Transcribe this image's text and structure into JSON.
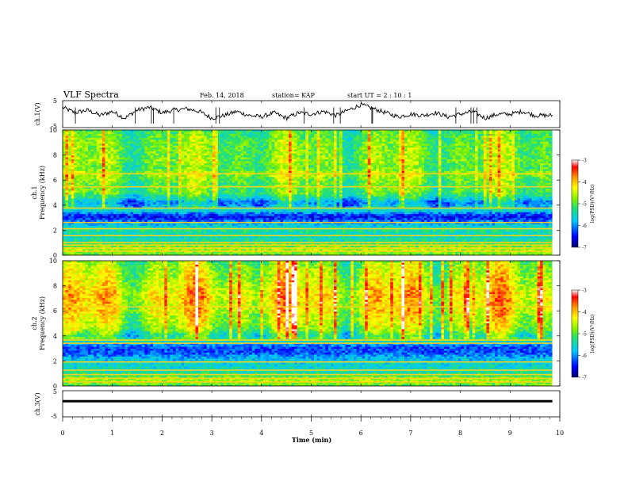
{
  "header": {
    "title": "VLF Spectra",
    "date": "Feb. 14, 2018",
    "station": "station= KAP",
    "start": "start  UT =   2 : 10 : 1"
  },
  "colors": {
    "colormap": [
      "#00006e",
      "#0000ff",
      "#00c8ff",
      "#22e07a",
      "#7ff000",
      "#ffff00",
      "#ff9b00",
      "#ff0000",
      "#ffffff"
    ],
    "trace": "#000000"
  },
  "chart_data": [
    {
      "type": "line",
      "name": "ch1-waveform",
      "ylabel": "ch.1(V)",
      "yticks": [
        "5",
        "-5"
      ],
      "ylim": [
        -5,
        5
      ],
      "xlim": [
        0,
        9.85
      ],
      "x": [
        0,
        0.25,
        0.5,
        0.75,
        1.0,
        1.25,
        1.5,
        1.75,
        2.0,
        2.25,
        2.5,
        2.75,
        3.0,
        3.25,
        3.5,
        3.75,
        4.0,
        4.25,
        4.5,
        4.75,
        5.0,
        5.25,
        5.5,
        5.75,
        6.0,
        6.25,
        6.5,
        6.75,
        7.0,
        7.25,
        7.5,
        7.75,
        8.0,
        8.25,
        8.5,
        8.75,
        9.0,
        9.25,
        9.5,
        9.85
      ],
      "values": [
        2.5,
        0.5,
        1.5,
        -0.5,
        1.0,
        -1.5,
        1.5,
        2.5,
        0.5,
        1.5,
        2.0,
        1.0,
        -1.5,
        -0.5,
        1.0,
        -0.5,
        -1.0,
        0.5,
        -1.5,
        0.5,
        0.0,
        1.0,
        -0.5,
        1.5,
        3.5,
        2.0,
        0.5,
        -1.0,
        0.0,
        -0.5,
        0.5,
        -1.0,
        0.0,
        1.0,
        -1.5,
        0.0,
        0.0,
        1.0,
        -0.5,
        -0.5
      ]
    },
    {
      "type": "heatmap",
      "name": "ch1-spectrogram",
      "ylabel": "ch.1 Frequency (kHz)",
      "yticks": [
        "0",
        "2",
        "4",
        "6",
        "8",
        "10"
      ],
      "ylim": [
        0,
        10
      ],
      "xlim": [
        0,
        9.85
      ],
      "colorbar": {
        "label": "log(PSD)(V²/Hz)",
        "ticks": [
          "-3",
          "-4",
          "-5",
          "-6",
          "-7"
        ],
        "range": [
          -7,
          -3
        ]
      },
      "profile_khz": [
        0,
        0.5,
        0.9,
        1.2,
        1.6,
        2.0,
        2.3,
        2.7,
        3.0,
        3.3,
        3.6,
        3.9,
        4.2,
        4.6,
        5.0,
        5.5,
        6.0,
        6.5,
        7.0,
        7.5,
        8.0,
        8.5,
        9.0,
        9.5,
        10.0
      ],
      "profile_logpsd": [
        -4.9,
        -4.6,
        -5.1,
        -5.4,
        -5.5,
        -5.3,
        -5.6,
        -6.1,
        -6.5,
        -6.2,
        -5.4,
        -5.8,
        -6.0,
        -5.4,
        -5.0,
        -5.0,
        -4.9,
        -4.6,
        -5.0,
        -4.8,
        -4.9,
        -4.9,
        -4.9,
        -5.0,
        -5.1
      ],
      "lines_khz": [
        0.3,
        0.55,
        0.8,
        1.0,
        1.55,
        2.1,
        2.6,
        3.75,
        5.45,
        6.5
      ]
    },
    {
      "type": "heatmap",
      "name": "ch2-spectrogram",
      "ylabel": "ch.2 Frequency (kHz)",
      "yticks": [
        "0",
        "2",
        "4",
        "6",
        "8",
        "10"
      ],
      "ylim": [
        0,
        10
      ],
      "xlim": [
        0,
        9.85
      ],
      "colorbar": {
        "label": "log(PSD)(V²/Hz)",
        "ticks": [
          "-3",
          "-4",
          "-5",
          "-6",
          "-7"
        ],
        "range": [
          -7,
          -3
        ]
      },
      "profile_khz": [
        0,
        0.5,
        0.9,
        1.3,
        1.8,
        2.2,
        2.6,
        3.0,
        3.4,
        3.7,
        4.0,
        4.5,
        5.0,
        5.5,
        6.0,
        6.5,
        7.0,
        7.5,
        8.0,
        8.5,
        9.0,
        9.5,
        10.0
      ],
      "profile_logpsd": [
        -5.0,
        -4.6,
        -5.2,
        -5.5,
        -5.6,
        -5.8,
        -6.2,
        -6.3,
        -5.9,
        -5.0,
        -5.3,
        -4.8,
        -4.6,
        -4.5,
        -4.3,
        -4.3,
        -4.2,
        -4.2,
        -4.4,
        -4.5,
        -4.6,
        -4.7,
        -4.9
      ],
      "lines_khz": [
        0.3,
        0.6,
        0.9,
        1.25,
        1.9,
        3.4,
        3.65,
        6.3
      ]
    },
    {
      "type": "line",
      "name": "ch3-waveform",
      "ylabel": "ch.3(V)",
      "yticks": [
        "5",
        "-5"
      ],
      "ylim": [
        -5,
        5
      ],
      "xlim": [
        0,
        9.85
      ],
      "x": [
        0,
        9.85
      ],
      "values": [
        1.0,
        1.0
      ]
    }
  ],
  "xaxis": {
    "label": "Time (min)",
    "ticks": [
      "0",
      "1",
      "2",
      "3",
      "4",
      "5",
      "6",
      "7",
      "8",
      "9",
      "10"
    ],
    "range": [
      0,
      10
    ]
  }
}
